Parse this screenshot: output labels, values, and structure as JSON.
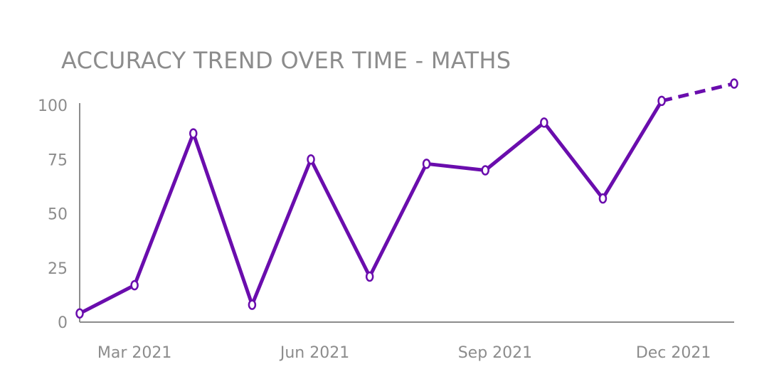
{
  "chart_data": {
    "type": "line",
    "title": "ACCURACY TREND OVER TIME - MATHS",
    "xlabel": "",
    "ylabel": "",
    "ylim": [
      0,
      100
    ],
    "yticks": [
      0,
      25,
      50,
      75,
      100
    ],
    "xlim": [
      "2021-02-01",
      "2022-01-01"
    ],
    "xticks": [
      {
        "date": "2021-03-01",
        "label": "Mar 2021"
      },
      {
        "date": "2021-06-01",
        "label": "Jun 2021"
      },
      {
        "date": "2021-09-01",
        "label": "Sep 2021"
      },
      {
        "date": "2021-12-01",
        "label": "Dec 2021"
      }
    ],
    "grid": false,
    "colors": {
      "line": "#6a0dad",
      "axis": "#8c8c8c",
      "text": "#8c8c8c",
      "marker_fill": "#ffffff"
    },
    "series": [
      {
        "style": "solid",
        "points": [
          {
            "x": "2021-02-01",
            "y": 4
          },
          {
            "x": "2021-03-01",
            "y": 17
          },
          {
            "x": "2021-03-31",
            "y": 87
          },
          {
            "x": "2021-04-30",
            "y": 8
          },
          {
            "x": "2021-05-30",
            "y": 75
          },
          {
            "x": "2021-06-29",
            "y": 21
          },
          {
            "x": "2021-07-28",
            "y": 73
          },
          {
            "x": "2021-08-27",
            "y": 70
          },
          {
            "x": "2021-09-26",
            "y": 92
          },
          {
            "x": "2021-10-26",
            "y": 57
          },
          {
            "x": "2021-11-25",
            "y": 102
          }
        ]
      },
      {
        "style": "dashed",
        "points": [
          {
            "x": "2021-11-25",
            "y": 102
          },
          {
            "x": "2022-01-01",
            "y": 110
          }
        ]
      }
    ]
  }
}
